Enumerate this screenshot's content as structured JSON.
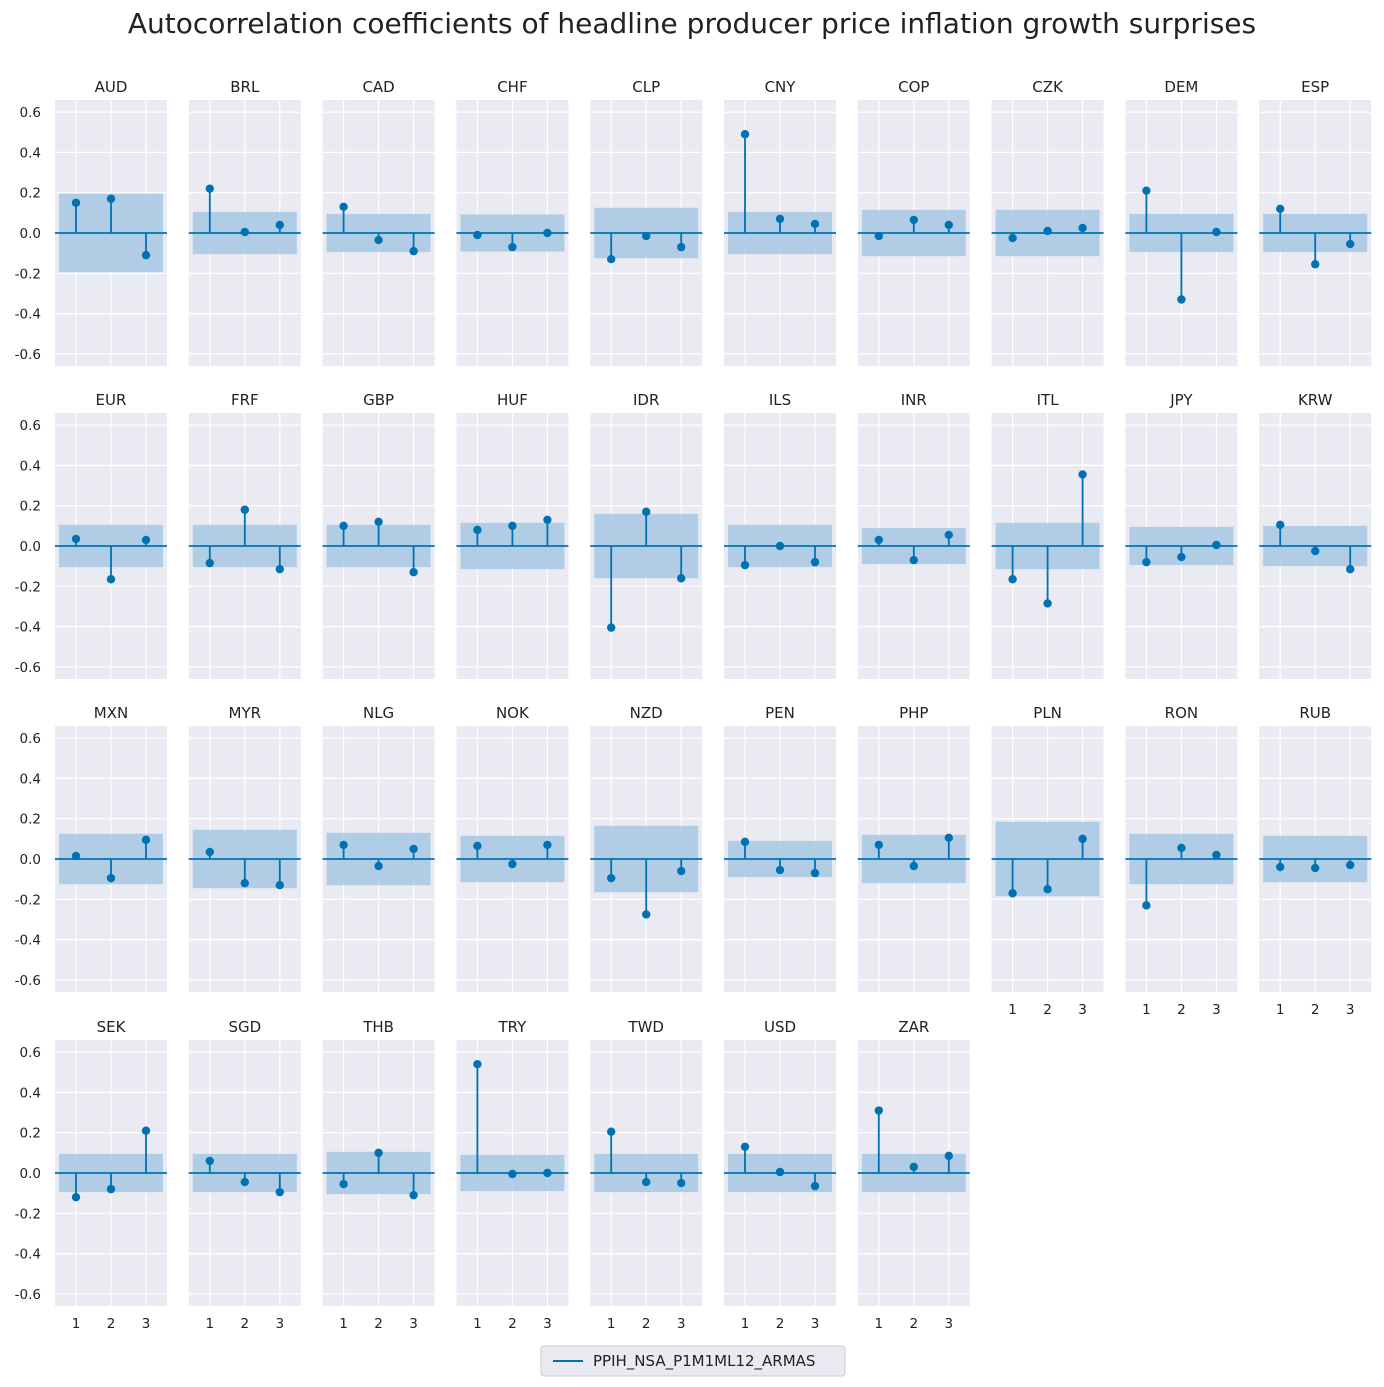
{
  "chart_data": {
    "type": "stem",
    "title": "Autocorrelation coefficients of headline producer price inflation growth surprises",
    "legend": {
      "label": "PPIH_NSA_P1M1ML12_ARMAS",
      "position": "bottom-center"
    },
    "x": [
      1,
      2,
      3
    ],
    "xticks": [
      "1",
      "2",
      "3"
    ],
    "ylim": [
      -0.66,
      0.66
    ],
    "yticks": [
      "0.6",
      "0.4",
      "0.2",
      "0.0",
      "-0.2",
      "-0.4",
      "-0.6"
    ],
    "ytick_values": [
      0.6,
      0.4,
      0.2,
      0.0,
      -0.2,
      -0.4,
      -0.6
    ],
    "grid": true,
    "colors": {
      "stem": "#0072B2",
      "band": "#a6c8e3",
      "panel": "#eaeaf2",
      "grid": "#ffffff",
      "text": "#222222"
    },
    "panels": [
      {
        "name": "AUD",
        "values": [
          0.15,
          0.17,
          -0.11
        ],
        "conf": 0.195
      },
      {
        "name": "BRL",
        "values": [
          0.22,
          0.005,
          0.04
        ],
        "conf": 0.105
      },
      {
        "name": "CAD",
        "values": [
          0.13,
          -0.035,
          -0.09
        ],
        "conf": 0.095
      },
      {
        "name": "CHF",
        "values": [
          -0.01,
          -0.07,
          0.0
        ],
        "conf": 0.092
      },
      {
        "name": "CLP",
        "values": [
          -0.13,
          -0.015,
          -0.07
        ],
        "conf": 0.125
      },
      {
        "name": "CNY",
        "values": [
          0.49,
          0.07,
          0.045
        ],
        "conf": 0.105
      },
      {
        "name": "COP",
        "values": [
          -0.015,
          0.065,
          0.04
        ],
        "conf": 0.115
      },
      {
        "name": "CZK",
        "values": [
          -0.025,
          0.01,
          0.025
        ],
        "conf": 0.115
      },
      {
        "name": "DEM",
        "values": [
          0.21,
          -0.33,
          0.005
        ],
        "conf": 0.095
      },
      {
        "name": "ESP",
        "values": [
          0.12,
          -0.155,
          -0.055
        ],
        "conf": 0.095
      },
      {
        "name": "EUR",
        "values": [
          0.035,
          -0.165,
          0.03
        ],
        "conf": 0.105
      },
      {
        "name": "FRF",
        "values": [
          -0.085,
          0.18,
          -0.115
        ],
        "conf": 0.105
      },
      {
        "name": "GBP",
        "values": [
          0.1,
          0.12,
          -0.13
        ],
        "conf": 0.105
      },
      {
        "name": "HUF",
        "values": [
          0.08,
          0.1,
          0.13
        ],
        "conf": 0.115
      },
      {
        "name": "IDR",
        "values": [
          -0.405,
          0.17,
          -0.16
        ],
        "conf": 0.16
      },
      {
        "name": "ILS",
        "values": [
          -0.095,
          0.0,
          -0.08
        ],
        "conf": 0.105
      },
      {
        "name": "INR",
        "values": [
          0.03,
          -0.07,
          0.055
        ],
        "conf": 0.09
      },
      {
        "name": "ITL",
        "values": [
          -0.165,
          -0.285,
          0.355
        ],
        "conf": 0.115
      },
      {
        "name": "JPY",
        "values": [
          -0.08,
          -0.055,
          0.005
        ],
        "conf": 0.095
      },
      {
        "name": "KRW",
        "values": [
          0.105,
          -0.025,
          -0.115
        ],
        "conf": 0.1
      },
      {
        "name": "MXN",
        "values": [
          0.015,
          -0.095,
          0.095
        ],
        "conf": 0.125
      },
      {
        "name": "MYR",
        "values": [
          0.035,
          -0.12,
          -0.13
        ],
        "conf": 0.145
      },
      {
        "name": "NLG",
        "values": [
          0.07,
          -0.035,
          0.05
        ],
        "conf": 0.13
      },
      {
        "name": "NOK",
        "values": [
          0.065,
          -0.025,
          0.07
        ],
        "conf": 0.115
      },
      {
        "name": "NZD",
        "values": [
          -0.095,
          -0.275,
          -0.06
        ],
        "conf": 0.165
      },
      {
        "name": "PEN",
        "values": [
          0.085,
          -0.055,
          -0.07
        ],
        "conf": 0.09
      },
      {
        "name": "PHP",
        "values": [
          0.07,
          -0.035,
          0.105
        ],
        "conf": 0.12
      },
      {
        "name": "PLN",
        "values": [
          -0.17,
          -0.15,
          0.1
        ],
        "conf": 0.185
      },
      {
        "name": "RON",
        "values": [
          -0.23,
          0.055,
          0.02
        ],
        "conf": 0.125
      },
      {
        "name": "RUB",
        "values": [
          -0.04,
          -0.045,
          -0.03
        ],
        "conf": 0.115
      },
      {
        "name": "SEK",
        "values": [
          -0.12,
          -0.08,
          0.21
        ],
        "conf": 0.095
      },
      {
        "name": "SGD",
        "values": [
          0.06,
          -0.045,
          -0.095
        ],
        "conf": 0.095
      },
      {
        "name": "THB",
        "values": [
          -0.055,
          0.1,
          -0.11
        ],
        "conf": 0.105
      },
      {
        "name": "TRY",
        "values": [
          0.54,
          -0.005,
          0.0
        ],
        "conf": 0.09
      },
      {
        "name": "TWD",
        "values": [
          0.205,
          -0.045,
          -0.05
        ],
        "conf": 0.095
      },
      {
        "name": "USD",
        "values": [
          0.13,
          0.005,
          -0.065
        ],
        "conf": 0.095
      },
      {
        "name": "ZAR",
        "values": [
          0.31,
          0.03,
          0.085
        ],
        "conf": 0.095
      }
    ]
  }
}
